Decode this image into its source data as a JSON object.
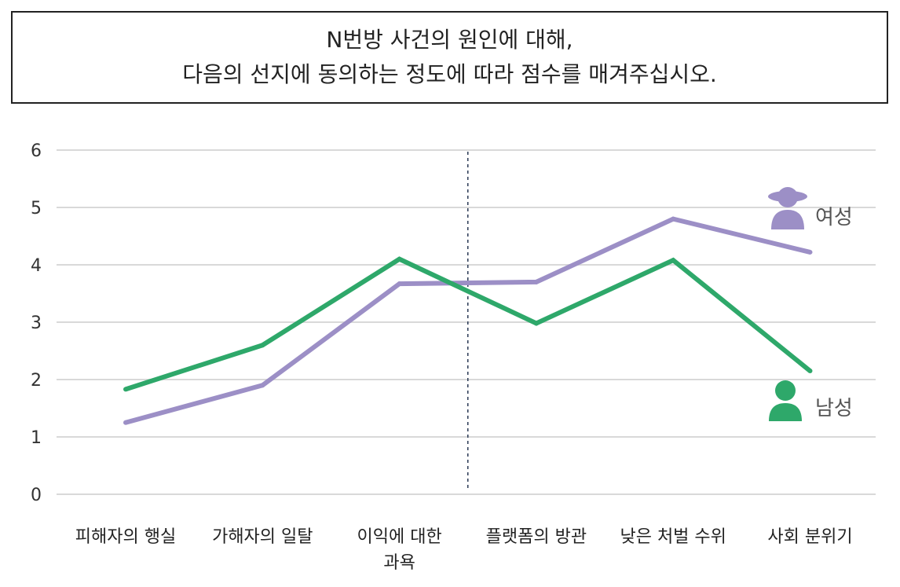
{
  "title": {
    "line1": "N번방 사건의 원인에 대해,",
    "line2": "다음의 선지에 동의하는 정도에 따라 점수를 매겨주십시오."
  },
  "chart_data": {
    "type": "line",
    "title": "N번방 사건의 원인에 대해, 다음의 선지에 동의하는 정도에 따라 점수를 매겨주십시오.",
    "categories": [
      [
        "피해자의 행실"
      ],
      [
        "가해자의 일탈"
      ],
      [
        "이익에 대한",
        "과욕"
      ],
      [
        "플랫폼의 방관"
      ],
      [
        "낮은 처벌 수위"
      ],
      [
        "사회 분위기"
      ]
    ],
    "series": [
      {
        "name": "여성",
        "color": "#9c8fc6",
        "icon": "female-person-icon",
        "values": [
          1.25,
          1.9,
          3.67,
          3.7,
          4.8,
          4.22
        ]
      },
      {
        "name": "남성",
        "color": "#2ea86a",
        "icon": "male-person-icon",
        "values": [
          1.83,
          2.6,
          4.1,
          2.98,
          4.08,
          2.15
        ]
      }
    ],
    "ylim": [
      0,
      6
    ],
    "yticks": [
      0,
      1,
      2,
      3,
      4,
      5,
      6
    ],
    "grid": true,
    "divider_after_category": 2.5,
    "xlabel": "",
    "ylabel": ""
  }
}
